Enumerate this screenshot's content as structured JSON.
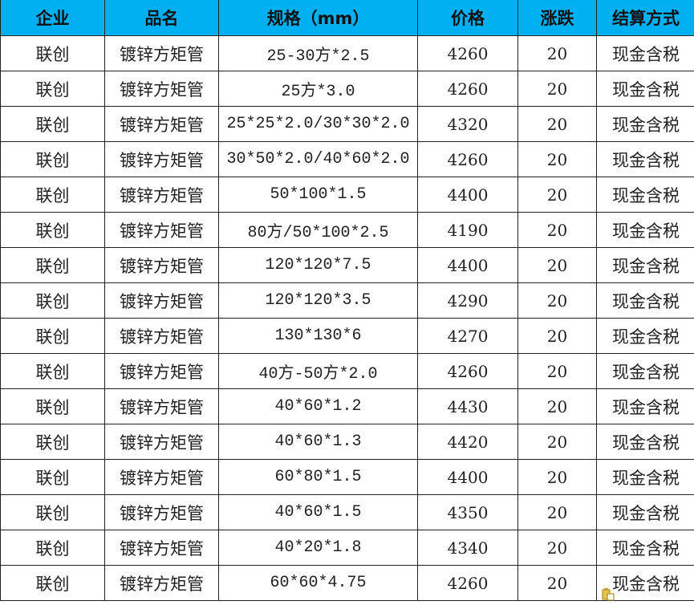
{
  "colors": {
    "header_bg": "#00B0F0"
  },
  "headers": [
    "企业",
    "品名",
    "规格（mm）",
    "价格",
    "涨跌",
    "结算方式"
  ],
  "rows": [
    [
      "联创",
      "镀锌方矩管",
      "25-30方*2.5",
      "4260",
      "20",
      "现金含税"
    ],
    [
      "联创",
      "镀锌方矩管",
      "25方*3.0",
      "4260",
      "20",
      "现金含税"
    ],
    [
      "联创",
      "镀锌方矩管",
      "25*25*2.0/30*30*2.0",
      "4320",
      "20",
      "现金含税"
    ],
    [
      "联创",
      "镀锌方矩管",
      "30*50*2.0/40*60*2.0",
      "4260",
      "20",
      "现金含税"
    ],
    [
      "联创",
      "镀锌方矩管",
      "50*100*1.5",
      "4400",
      "20",
      "现金含税"
    ],
    [
      "联创",
      "镀锌方矩管",
      "80方/50*100*2.5",
      "4190",
      "20",
      "现金含税"
    ],
    [
      "联创",
      "镀锌方矩管",
      "120*120*7.5",
      "4400",
      "20",
      "现金含税"
    ],
    [
      "联创",
      "镀锌方矩管",
      "120*120*3.5",
      "4290",
      "20",
      "现金含税"
    ],
    [
      "联创",
      "镀锌方矩管",
      "130*130*6",
      "4270",
      "20",
      "现金含税"
    ],
    [
      "联创",
      "镀锌方矩管",
      "40方-50方*2.0",
      "4260",
      "20",
      "现金含税"
    ],
    [
      "联创",
      "镀锌方矩管",
      "40*60*1.2",
      "4430",
      "20",
      "现金含税"
    ],
    [
      "联创",
      "镀锌方矩管",
      "40*60*1.3",
      "4420",
      "20",
      "现金含税"
    ],
    [
      "联创",
      "镀锌方矩管",
      "60*80*1.5",
      "4400",
      "20",
      "现金含税"
    ],
    [
      "联创",
      "镀锌方矩管",
      "40*60*1.5",
      "4350",
      "20",
      "现金含税"
    ],
    [
      "联创",
      "镀锌方矩管",
      "40*20*1.8",
      "4340",
      "20",
      "现金含税"
    ],
    [
      "联创",
      "镀锌方矩管",
      "60*60*4.75",
      "4260",
      "20",
      "现金含税"
    ]
  ],
  "paste_options_icon": "paste-icon"
}
